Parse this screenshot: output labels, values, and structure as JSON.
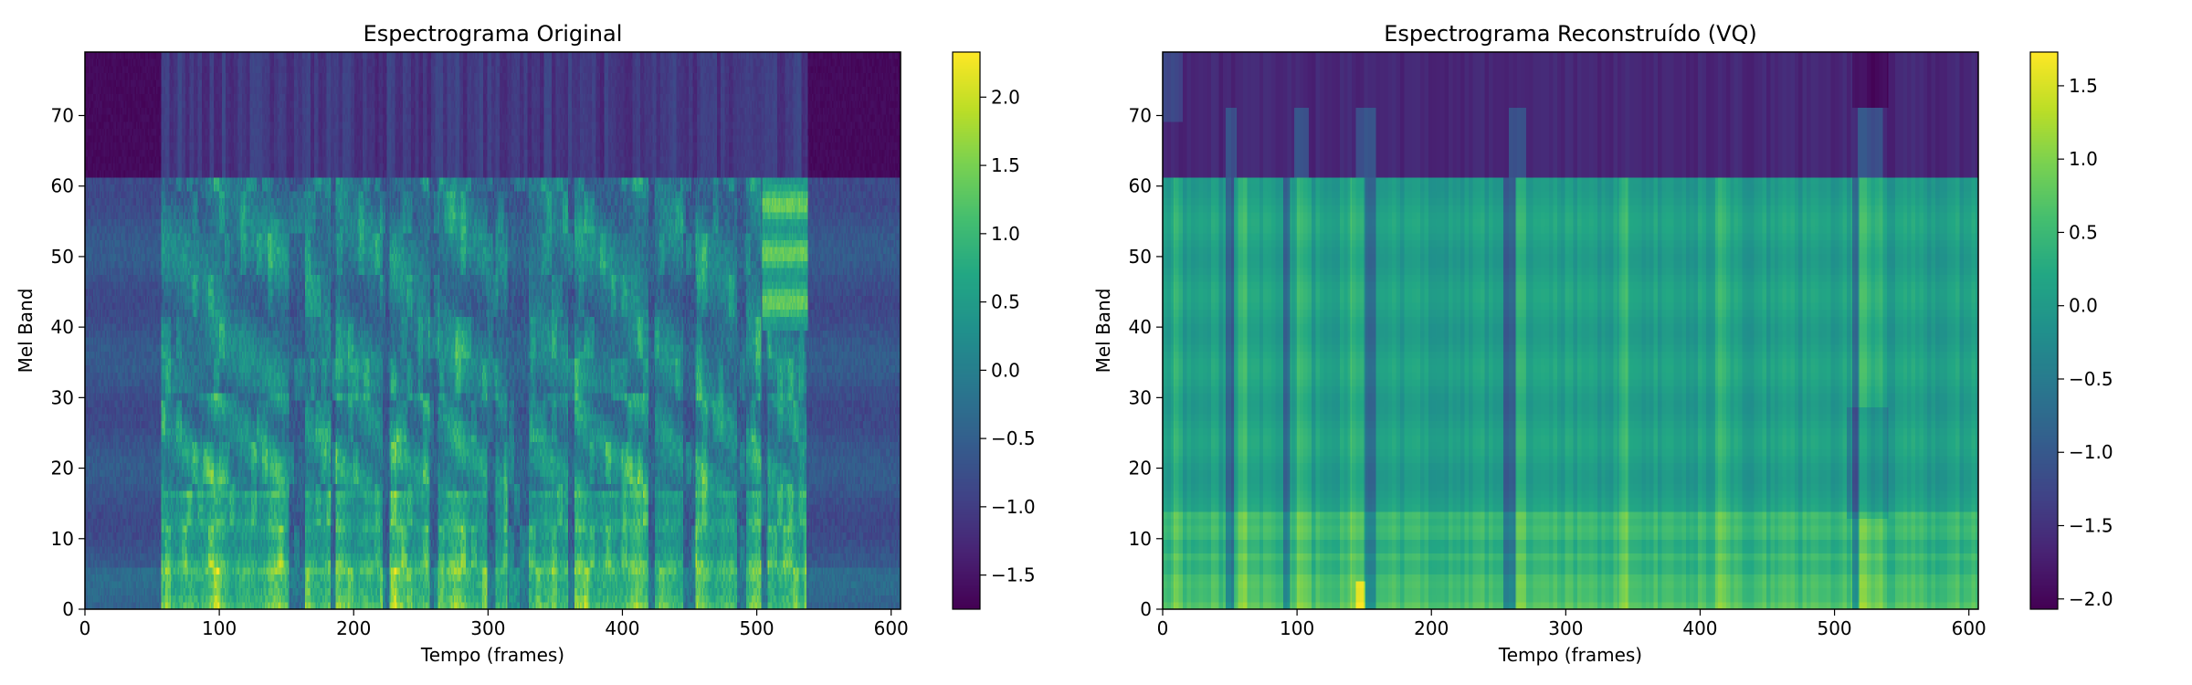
{
  "chart_data": [
    {
      "type": "heatmap",
      "title": "Espectrograma Original",
      "xlabel": "Tempo (frames)",
      "ylabel": "Mel Band",
      "xlim": [
        0,
        607
      ],
      "ylim": [
        0,
        79
      ],
      "xticks": [
        0,
        100,
        200,
        300,
        400,
        500,
        600
      ],
      "yticks": [
        0,
        10,
        20,
        30,
        40,
        50,
        60,
        70
      ],
      "colormap": "viridis",
      "colorbar": {
        "range": [
          -1.75,
          2.33
        ],
        "ticks": [
          -1.5,
          -1.0,
          -0.5,
          0.0,
          0.5,
          1.0,
          1.5,
          2.0
        ]
      }
    },
    {
      "type": "heatmap",
      "title": "Espectrograma Reconstruído (VQ)",
      "xlabel": "Tempo (frames)",
      "ylabel": "Mel Band",
      "xlim": [
        0,
        607
      ],
      "ylim": [
        0,
        79
      ],
      "xticks": [
        0,
        100,
        200,
        300,
        400,
        500,
        600
      ],
      "yticks": [
        0,
        10,
        20,
        30,
        40,
        50,
        60,
        70
      ],
      "colormap": "viridis",
      "colorbar": {
        "range": [
          -2.07,
          1.73
        ],
        "ticks": [
          -2.0,
          -1.5,
          -1.0,
          -0.5,
          0.0,
          0.5,
          1.0,
          1.5
        ]
      }
    }
  ]
}
